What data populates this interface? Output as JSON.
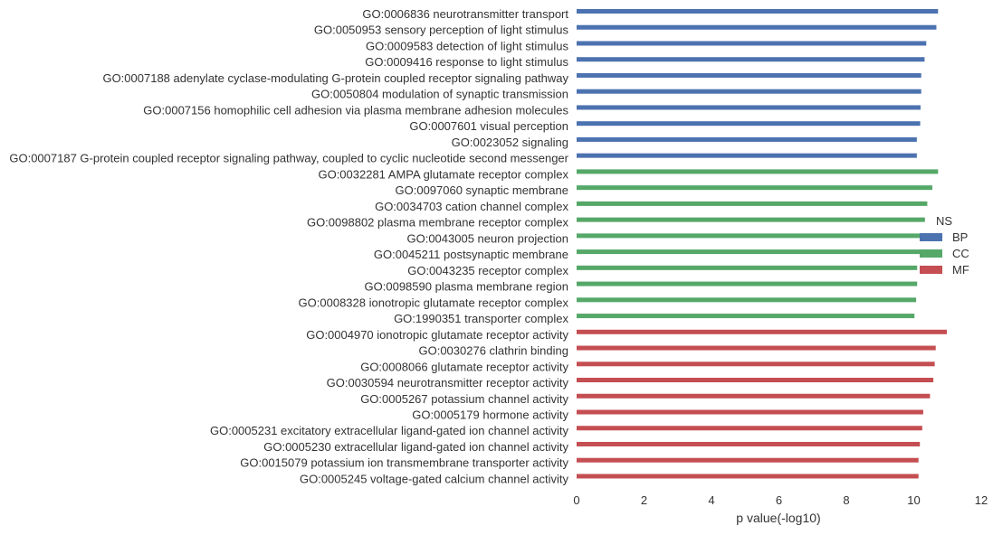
{
  "chart_data": {
    "type": "bar",
    "orientation": "horizontal",
    "xlabel": "p value(-log10)",
    "xlim": [
      0,
      12
    ],
    "xticks": [
      0,
      2,
      4,
      6,
      8,
      10,
      12
    ],
    "grid": false,
    "legend": {
      "title": "NS",
      "placement": "right"
    },
    "series": [
      {
        "name": "BP",
        "color": "#4C72B0",
        "categories": [
          "GO:0006836 neurotransmitter transport",
          "GO:0050953 sensory perception of light stimulus",
          "GO:0009583 detection of light stimulus",
          "GO:0009416 response to light stimulus",
          "GO:0007188 adenylate cyclase-modulating G-protein coupled receptor signaling pathway",
          "GO:0050804 modulation of synaptic transmission",
          "GO:0007156 homophilic cell adhesion via plasma membrane adhesion molecules",
          "GO:0007601 visual perception",
          "GO:0023052 signaling",
          "GO:0007187 G-protein coupled receptor signaling pathway, coupled to cyclic nucleotide second messenger"
        ],
        "values": [
          10.72,
          10.67,
          10.37,
          10.32,
          10.22,
          10.22,
          10.2,
          10.19,
          10.09,
          10.09
        ]
      },
      {
        "name": "CC",
        "color": "#55A868",
        "categories": [
          "GO:0032281 AMPA glutamate receptor complex",
          "GO:0097060 synaptic membrane",
          "GO:0034703 cation channel complex",
          "GO:0098802 plasma membrane receptor complex",
          "GO:0043005 neuron projection",
          "GO:0045211 postsynaptic membrane",
          "GO:0043235 receptor complex",
          "GO:0098590 plasma membrane region",
          "GO:0008328 ionotropic glutamate receptor complex",
          "GO:1990351 transporter complex"
        ],
        "values": [
          10.72,
          10.55,
          10.4,
          10.33,
          10.28,
          10.18,
          10.1,
          10.1,
          10.07,
          10.02
        ]
      },
      {
        "name": "MF",
        "color": "#C44E52",
        "categories": [
          "GO:0004970 ionotropic glutamate receptor activity",
          "GO:0030276 clathrin binding",
          "GO:0008066 glutamate receptor activity",
          "GO:0030594 neurotransmitter receptor activity",
          "GO:0005267 potassium channel activity",
          "GO:0005179 hormone activity",
          "GO:0005231 excitatory extracellular ligand-gated ion channel activity",
          "GO:0005230 extracellular ligand-gated ion channel activity",
          "GO:0015079 potassium ion transmembrane transporter activity",
          "GO:0005245 voltage-gated calcium channel activity"
        ],
        "values": [
          10.98,
          10.65,
          10.62,
          10.58,
          10.48,
          10.28,
          10.25,
          10.18,
          10.14,
          10.14
        ]
      }
    ]
  }
}
